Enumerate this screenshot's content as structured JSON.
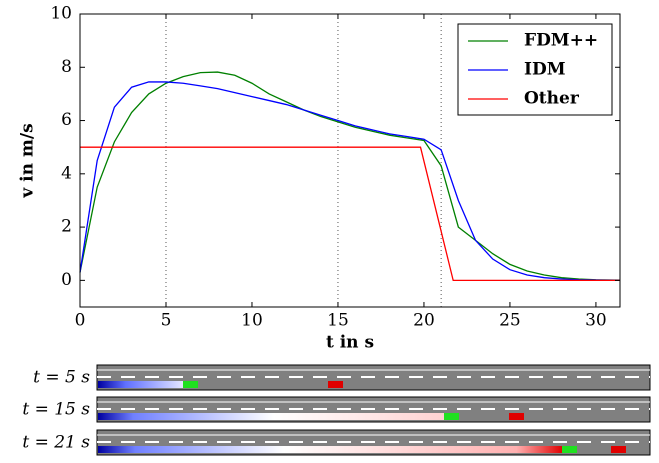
{
  "chart_data": {
    "type": "line",
    "xlabel": "t in s",
    "ylabel": "v in m/s",
    "xlim": [
      0,
      31.4
    ],
    "ylim": [
      -1,
      10
    ],
    "xticks": [
      0,
      5,
      10,
      15,
      20,
      25,
      30
    ],
    "yticks": [
      0,
      2,
      4,
      6,
      8,
      10
    ],
    "vlines": [
      5,
      15,
      21
    ],
    "legend": "upper right",
    "series": [
      {
        "name": "FDM++",
        "color": "#008000",
        "x": [
          0,
          1,
          2,
          3,
          4,
          5,
          6,
          7,
          8,
          9,
          10,
          11,
          12,
          13,
          14,
          15,
          16,
          17,
          18,
          19,
          20,
          21,
          22,
          23,
          24,
          25,
          26,
          27,
          28,
          29,
          30,
          31.4
        ],
        "values": [
          0.3,
          3.5,
          5.2,
          6.3,
          7.0,
          7.4,
          7.65,
          7.8,
          7.82,
          7.7,
          7.4,
          7.0,
          6.7,
          6.4,
          6.15,
          5.95,
          5.75,
          5.6,
          5.45,
          5.35,
          5.25,
          4.3,
          2.0,
          1.5,
          1.0,
          0.6,
          0.35,
          0.2,
          0.1,
          0.05,
          0.02,
          0.01
        ]
      },
      {
        "name": "IDM",
        "color": "#0000ff",
        "x": [
          0,
          1,
          2,
          3,
          4,
          5,
          6,
          7,
          8,
          9,
          10,
          11,
          12,
          13,
          14,
          15,
          16,
          17,
          18,
          19,
          20,
          21,
          22,
          23,
          24,
          25,
          26,
          27,
          28,
          29,
          31.4
        ],
        "values": [
          0.3,
          4.5,
          6.5,
          7.25,
          7.45,
          7.45,
          7.4,
          7.3,
          7.2,
          7.05,
          6.9,
          6.75,
          6.6,
          6.4,
          6.2,
          6.0,
          5.8,
          5.65,
          5.5,
          5.4,
          5.3,
          4.9,
          3.0,
          1.5,
          0.8,
          0.4,
          0.2,
          0.1,
          0.05,
          0.02,
          0
        ]
      },
      {
        "name": "Other",
        "color": "#ff0000",
        "x": [
          0,
          19.8,
          21.7,
          31.4
        ],
        "values": [
          5,
          5,
          0,
          0
        ]
      }
    ]
  },
  "strips": [
    "t = 5 s",
    "t = 15 s",
    "t = 21 s"
  ]
}
